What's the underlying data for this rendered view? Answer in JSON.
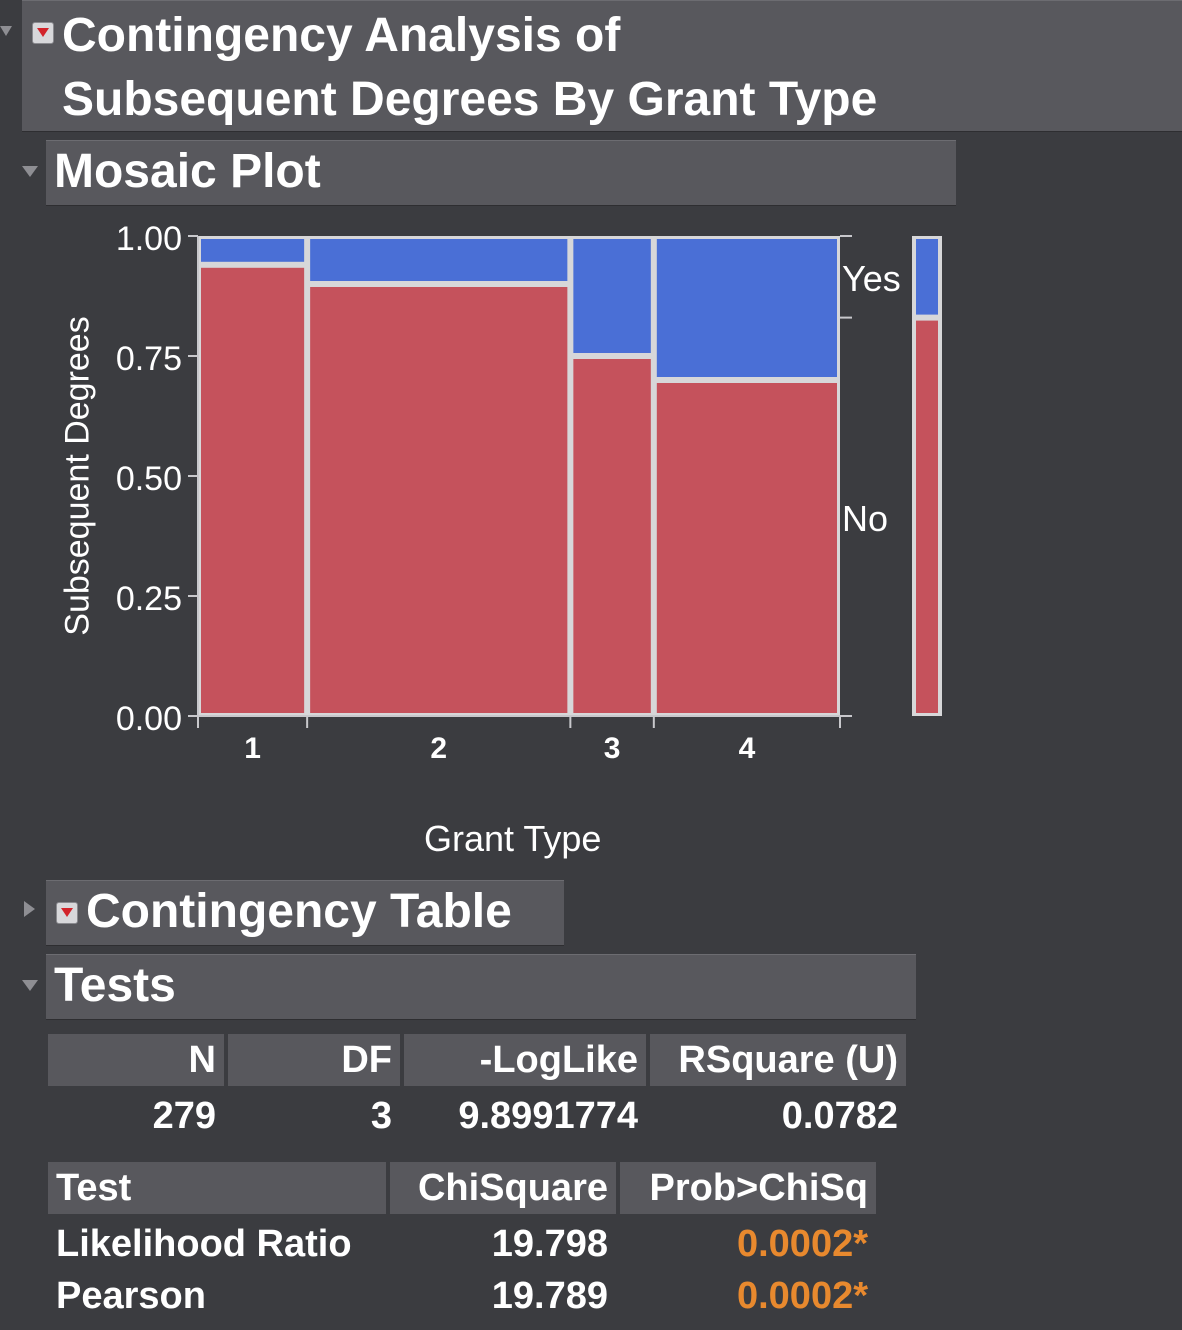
{
  "report": {
    "title_line1": "Contingency Analysis of",
    "title_line2": "Subsequent Degrees By Grant Type"
  },
  "mosaic": {
    "section_title": "Mosaic Plot",
    "y_tick_labels": [
      "1.00",
      "0.75",
      "0.50",
      "0.25",
      "0.00"
    ],
    "legend_yes": "Yes",
    "legend_no": "No"
  },
  "contingency": {
    "section_title": "Contingency Table"
  },
  "tests": {
    "section_title": "Tests",
    "summary_headers": [
      "N",
      "DF",
      "-LogLike",
      "RSquare (U)"
    ],
    "summary_values": [
      "279",
      "3",
      "9.8991774",
      "0.0782"
    ],
    "test_headers": [
      "Test",
      "ChiSquare",
      "Prob>ChiSq"
    ],
    "rows": [
      {
        "test": "Likelihood Ratio",
        "chisq": "19.798",
        "prob": "0.0002*"
      },
      {
        "test": "Pearson",
        "chisq": "19.789",
        "prob": "0.0002*"
      }
    ],
    "sig_color": "#e8892e"
  },
  "chart_data": {
    "type": "mosaic",
    "xlabel": "Grant Type",
    "ylabel": "Subsequent Degrees",
    "ylim": [
      0,
      1
    ],
    "y_ticks": [
      0,
      0.25,
      0.5,
      0.75,
      1
    ],
    "categories": [
      "1",
      "2",
      "3",
      "4"
    ],
    "category_shares": [
      0.17,
      0.41,
      0.13,
      0.29
    ],
    "series": [
      {
        "name": "No",
        "color": "#c5525c",
        "values": [
          0.94,
          0.9,
          0.75,
          0.7
        ]
      },
      {
        "name": "Yes",
        "color": "#4a6fd6",
        "values": [
          0.06,
          0.1,
          0.25,
          0.3
        ]
      }
    ],
    "marginal": {
      "No": 0.83,
      "Yes": 0.17
    }
  }
}
